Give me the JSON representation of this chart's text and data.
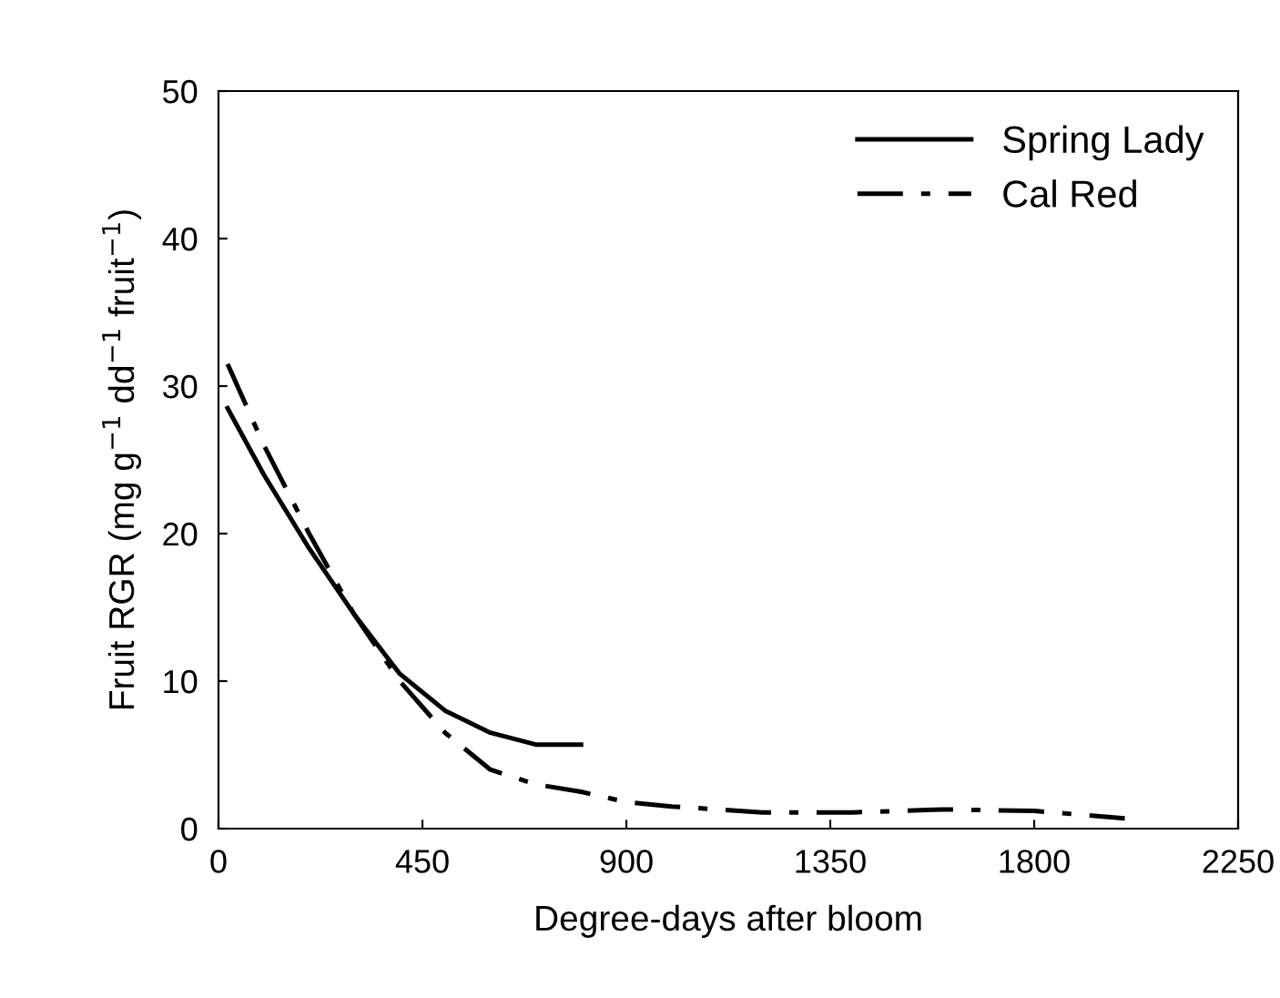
{
  "chart_data": {
    "type": "line",
    "xlabel": "Degree-days after bloom",
    "ylabel": "Fruit RGR (mg g$^{−1}$ dd$^{−1}$ fruit$^{−1}$)",
    "xlim": [
      0,
      2250
    ],
    "xticks": [
      0,
      450,
      900,
      1350,
      1800,
      2250
    ],
    "ylim": [
      0,
      50
    ],
    "yticks": [
      0,
      10,
      20,
      30,
      40,
      50
    ],
    "grid": false,
    "legend": "top right",
    "marker": "none",
    "series": [
      {
        "name": "Spring Lady",
        "color": "#000000",
        "line_style": "solid",
        "x": [
          20,
          100,
          200,
          300,
          400,
          500,
          600,
          700,
          800
        ],
        "values": [
          28.5,
          24,
          19,
          14.5,
          10.5,
          8,
          6.5,
          5.7,
          5.7
        ]
      },
      {
        "name": "Cal Red",
        "color": "#000000",
        "line_style": "dashdot",
        "x": [
          20,
          100,
          200,
          300,
          400,
          500,
          600,
          700,
          800,
          900,
          1000,
          1200,
          1400,
          1600,
          1800,
          2000
        ],
        "values": [
          31.5,
          26,
          20,
          14.5,
          10,
          6.5,
          4,
          3,
          2.5,
          1.8,
          1.5,
          1.1,
          1.1,
          1.3,
          1.2,
          0.7
        ]
      }
    ]
  }
}
